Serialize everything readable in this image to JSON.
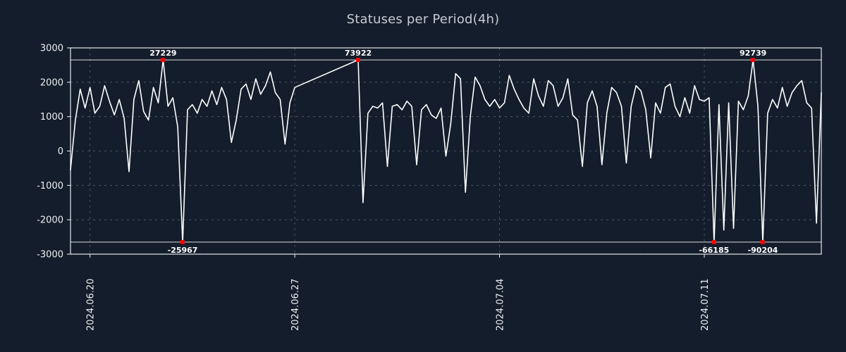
{
  "title": "Statuses per Period(4h)",
  "chart_data": {
    "type": "line",
    "title": "Statuses per Period(4h)",
    "ylim": [
      -3000,
      3000
    ],
    "y_ticks": [
      3000,
      2000,
      1000,
      0,
      -1000,
      -2000,
      -3000
    ],
    "x_ticks": [
      {
        "position": 4,
        "label": "2024.06.20"
      },
      {
        "position": 46,
        "label": "2024.06.27"
      },
      {
        "position": 88,
        "label": "2024.07.04"
      },
      {
        "position": 130,
        "label": "2024.07.11"
      }
    ],
    "clip_lines": {
      "top": 2650,
      "bottom": -2650
    },
    "grid": "dashed",
    "legend_position": "none",
    "series": [
      {
        "name": "statuses",
        "values": [
          -550,
          900,
          1800,
          1250,
          1850,
          1100,
          1300,
          1900,
          1450,
          1050,
          1500,
          950,
          -600,
          1500,
          2050,
          1150,
          900,
          1850,
          1400,
          27229,
          1300,
          1550,
          700,
          -25967,
          1200,
          1350,
          1100,
          1500,
          1300,
          1750,
          1350,
          1850,
          1500,
          250,
          900,
          1800,
          1950,
          1500,
          2100,
          1650,
          1900,
          2300,
          1700,
          1500,
          200,
          1400,
          1850,
          null,
          null,
          null,
          null,
          null,
          null,
          null,
          null,
          null,
          null,
          null,
          null,
          73922,
          -1500,
          1100,
          1300,
          1250,
          1400,
          -450,
          1300,
          1350,
          1200,
          1450,
          1300,
          -400,
          1200,
          1350,
          1050,
          950,
          1250,
          -150,
          800,
          2250,
          2100,
          -1200,
          1000,
          2150,
          1900,
          1500,
          1300,
          1500,
          1250,
          1400,
          2200,
          1800,
          1500,
          1250,
          1100,
          2100,
          1600,
          1300,
          2050,
          1900,
          1300,
          1550,
          2100,
          1050,
          900,
          -450,
          1400,
          1750,
          1300,
          -400,
          1100,
          1850,
          1700,
          1300,
          -350,
          1300,
          1900,
          1750,
          1200,
          -200,
          1400,
          1100,
          1850,
          1950,
          1300,
          1000,
          1550,
          1100,
          1900,
          1500,
          1450,
          1550,
          -66185,
          1350,
          -2300,
          1400,
          -2250,
          1450,
          1200,
          1600,
          92739,
          1300,
          -90204,
          1100,
          1500,
          1250,
          1850,
          1300,
          1700,
          1900,
          2050,
          1400,
          1250,
          -2100,
          1700
        ]
      }
    ],
    "annotations": [
      {
        "index": 19,
        "value": 27229,
        "label": "27229"
      },
      {
        "index": 23,
        "value": -25967,
        "label": "-25967"
      },
      {
        "index": 59,
        "value": 73922,
        "label": "73922"
      },
      {
        "index": 132,
        "value": -66185,
        "label": "-66185"
      },
      {
        "index": 140,
        "value": 92739,
        "label": "92739"
      },
      {
        "index": 142,
        "value": -90204,
        "label": "-90204"
      }
    ],
    "colors": {
      "background": "#131d2b",
      "line": "#ffffff",
      "marker": "#ff0000",
      "grid": "#ffffff",
      "border": "#ffffff",
      "clip_line": "#ffffff",
      "title": "#c7ccd3",
      "tick": "#eef1f4",
      "annotation": "#ffffff"
    }
  }
}
